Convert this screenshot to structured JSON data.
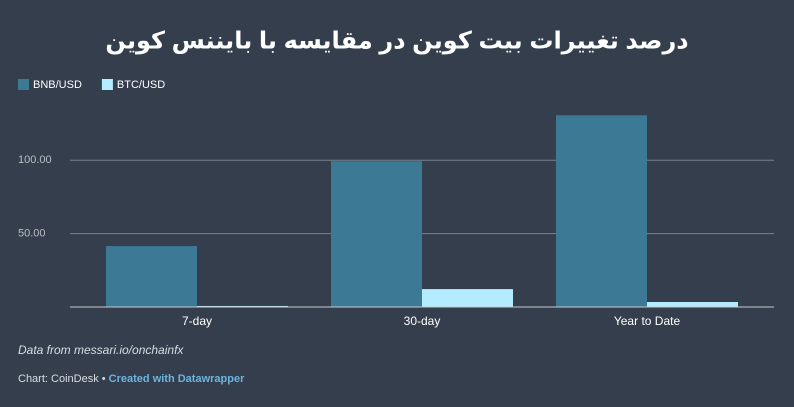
{
  "chart_data": {
    "type": "bar",
    "title": "درصد تغییرات بیت کوین در مقایسه با بایننس کوین",
    "categories": [
      "7-day",
      "30-day",
      "Year to Date"
    ],
    "series": [
      {
        "name": "BNB/USD",
        "color": "#3b7995",
        "values": [
          41.5,
          99.3,
          130.6
        ]
      },
      {
        "name": "BTC/USD",
        "color": "#b4ecff",
        "values": [
          0.7,
          12.2,
          3.4
        ]
      }
    ],
    "ylim": [
      0,
      141
    ],
    "yticks": [
      {
        "value": 50,
        "label": "50.00"
      },
      {
        "value": 100,
        "label": "100.00"
      }
    ],
    "grid": true,
    "legend": "top-left",
    "source": "Data from messari.io/onchainfx",
    "credit": "Chart: CoinDesk •",
    "credit_link": "Created with Datawrapper"
  }
}
